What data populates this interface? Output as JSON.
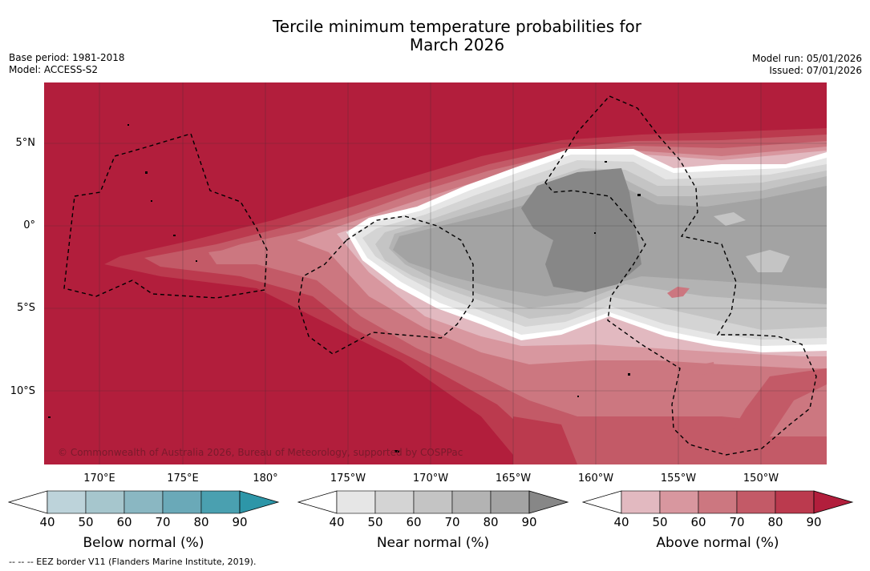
{
  "title_line1": "Tercile minimum temperature probabilities for",
  "title_line2": "March 2026",
  "meta": {
    "base_period": "Base period: 1981-2018",
    "model": "Model: ACCESS-S2",
    "model_run": "Model run: 05/01/2026",
    "issued": "Issued: 07/01/2026"
  },
  "lat_labels": [
    "5°N",
    "0°",
    "5°S",
    "10°S"
  ],
  "lon_labels": [
    "170°E",
    "175°E",
    "180°",
    "175°W",
    "170°W",
    "165°W",
    "160°W",
    "155°W",
    "150°W"
  ],
  "copyright": "© Commonwealth of Australia 2026, Bureau of Meteorology, supported by COSPPac",
  "colorbars": [
    {
      "title": "Below normal (%)",
      "ticks": [
        "40",
        "50",
        "60",
        "70",
        "80",
        "90"
      ],
      "colors": [
        "#ffffff",
        "#bdd3da",
        "#a6c6cd",
        "#8ab7c2",
        "#6aa9b8",
        "#4aa0b0",
        "#2d96a8"
      ]
    },
    {
      "title": "Near normal (%)",
      "ticks": [
        "40",
        "50",
        "60",
        "70",
        "80",
        "90"
      ],
      "colors": [
        "#ffffff",
        "#e6e6e6",
        "#d4d4d4",
        "#c4c4c4",
        "#b3b3b3",
        "#a3a3a3",
        "#878787"
      ]
    },
    {
      "title": "Above normal (%)",
      "ticks": [
        "40",
        "50",
        "60",
        "70",
        "80",
        "90"
      ],
      "colors": [
        "#ffffff",
        "#e2b9c0",
        "#d8979f",
        "#cc7780",
        "#c35a67",
        "#bb3a4e",
        "#b21e3c"
      ]
    }
  ],
  "eez_note": "--  --  -- EEZ border V11 (Flanders Marine Institute, 2019)."
}
